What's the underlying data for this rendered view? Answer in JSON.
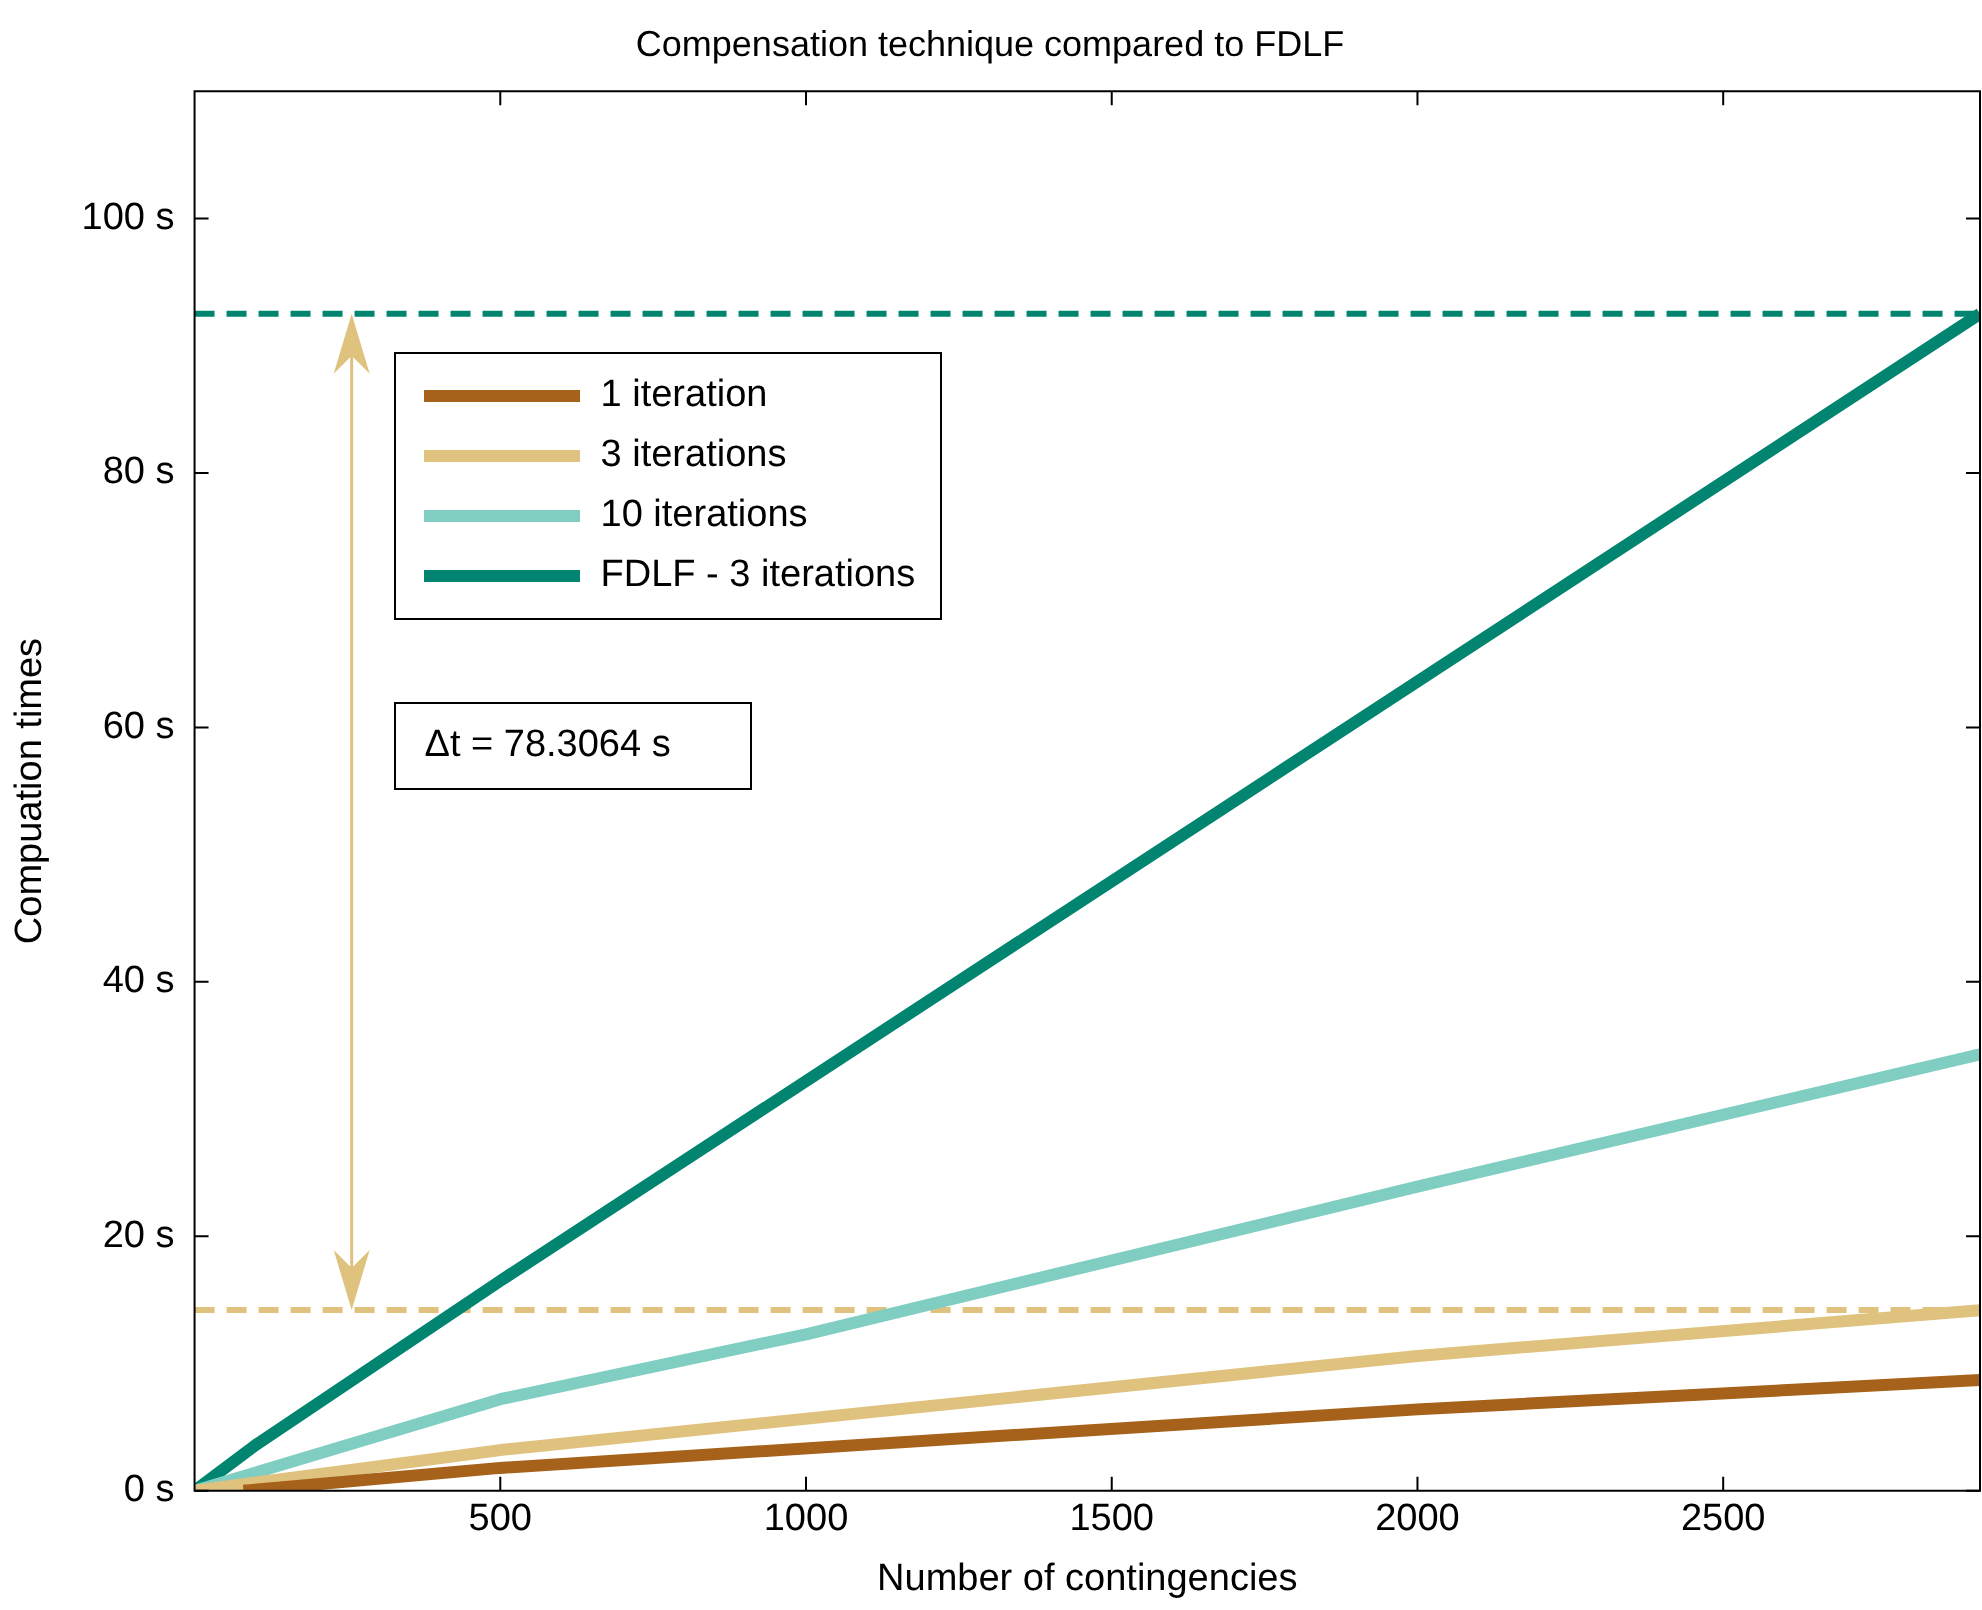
{
  "chart_data": {
    "type": "line",
    "title": "Compensation technique compared to FDLF",
    "xlabel": "Number of contingencies",
    "ylabel": "Compuation times",
    "xlim": [
      0,
      2920
    ],
    "xticks": [
      500,
      1000,
      1500,
      2000,
      2500
    ],
    "ylim": [
      0,
      110
    ],
    "yticks": [
      {
        "value": 0,
        "label": "0 s"
      },
      {
        "value": 20,
        "label": "20 s"
      },
      {
        "value": 40,
        "label": "40 s"
      },
      {
        "value": 60,
        "label": "60 s"
      },
      {
        "value": 80,
        "label": "80 s"
      },
      {
        "value": 100,
        "label": "100 s"
      }
    ],
    "grid": false,
    "legend": "top left",
    "marker": "none",
    "line_style": "solid",
    "series": [
      {
        "name": "1 iteration",
        "color": "#a6611a",
        "x": [
          80,
          500,
          2000,
          2920
        ],
        "values": [
          0,
          1.8,
          6.4,
          8.7
        ]
      },
      {
        "name": "3 iterations",
        "color": "#dfc27d",
        "x": [
          0,
          500,
          2000,
          2920
        ],
        "values": [
          0,
          3.2,
          10.6,
          14.2
        ]
      },
      {
        "name": "10 iterations",
        "color": "#80cdc1",
        "x": [
          0,
          500,
          1000,
          2000,
          2920
        ],
        "values": [
          0,
          7.2,
          12.3,
          23.9,
          34.3
        ]
      },
      {
        "name": "FDLF - 3 iterations",
        "color": "#018571",
        "x": [
          0,
          100,
          500,
          2920
        ],
        "values": [
          0,
          3.6,
          16.5,
          92.5
        ]
      }
    ],
    "ref_lines": [
      {
        "axis": "y",
        "value": 92.5,
        "color": "#018571",
        "line_style": "dashed"
      },
      {
        "axis": "y",
        "value": 14.2,
        "color": "#dfc27d",
        "line_style": "dashed"
      }
    ],
    "annotations": [
      "Δt = 78.3064 s"
    ]
  }
}
